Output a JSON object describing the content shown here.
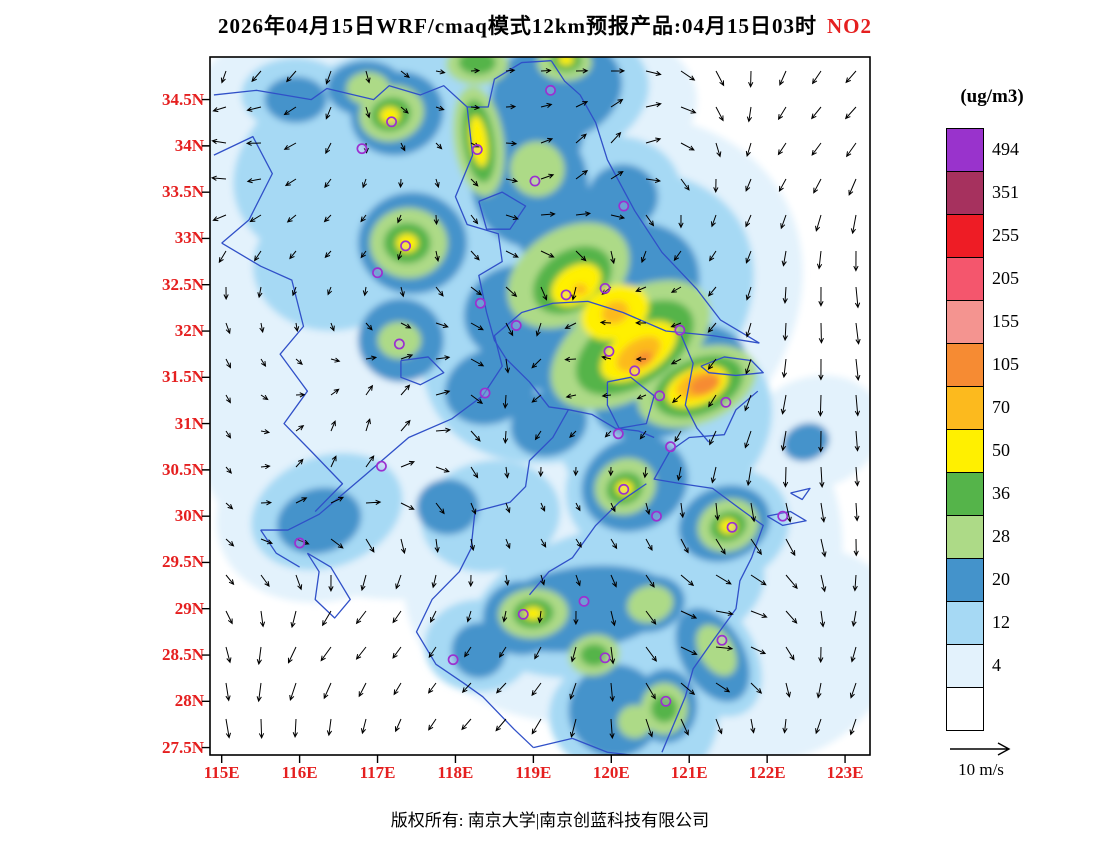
{
  "title": {
    "text": "2026年04月15日WRF/cmaq模式12km预报产品:04月15日03时",
    "pollutant": "NO2"
  },
  "colors": {
    "axis_label": "#e51f1f",
    "pollutant_label": "#e51f1f",
    "boundary_line": "#3050C8",
    "city_marker": "#9B30D0",
    "wind_arrow": "#000000"
  },
  "axes": {
    "y_labels": [
      "34.5N",
      "34N",
      "33.5N",
      "33N",
      "32.5N",
      "32N",
      "31.5N",
      "31N",
      "30.5N",
      "30N",
      "29.5N",
      "29N",
      "28.5N",
      "28N",
      "27.5N"
    ],
    "x_labels": [
      "115E",
      "116E",
      "117E",
      "118E",
      "119E",
      "120E",
      "121E",
      "122E",
      "123E"
    ]
  },
  "legend": {
    "unit_label": "(ug/m3)",
    "levels": [
      "494",
      "351",
      "255",
      "205",
      "155",
      "105",
      "70",
      "50",
      "36",
      "28",
      "20",
      "12",
      "4"
    ],
    "colors_top_to_bottom": [
      "#9933CC",
      "#A6315E",
      "#EE1C25",
      "#F4566D",
      "#F49490",
      "#F68B33",
      "#FCBA1E",
      "#FFF000",
      "#55B44A",
      "#ADDA87",
      "#4493CB",
      "#A6D9F4",
      "#E3F2FC",
      "#FFFFFF"
    ]
  },
  "wind": {
    "reference_label": "10 m/s"
  },
  "footer": {
    "text": "版权所有: 南京大学|南京创蓝科技有限公司"
  },
  "chart_data": {
    "type": "contour_map",
    "variable": "NO2",
    "units": "ug/m3",
    "model_label": "WRF/cmaq 12km",
    "valid_time_label": "04月15日03时",
    "lon_range": [
      114.85,
      123.32
    ],
    "lat_range": [
      27.42,
      34.96
    ],
    "contour_levels": [
      4,
      12,
      20,
      28,
      36,
      50,
      70,
      105,
      155,
      205,
      255,
      351,
      494
    ],
    "level_colors": {
      "4": "#E3F2FC",
      "12": "#A6D9F4",
      "20": "#4493CB",
      "28": "#ADDA87",
      "36": "#55B44A",
      "50": "#FFF000",
      "70": "#FCBA1E",
      "105": "#F68B33",
      "155": "#F49490",
      "205": "#F4566D",
      "255": "#EE1C25",
      "351": "#A6315E",
      "494": "#9933CC"
    },
    "wind_reference": {
      "speed": 10,
      "units": "m/s"
    },
    "field_regions": [
      [
        117.6,
        33.6,
        3.3,
        1.9,
        -10,
        4
      ],
      [
        119.6,
        32.2,
        3.0,
        2.0,
        -30,
        4
      ],
      [
        117.2,
        31.2,
        2.6,
        2.1,
        0,
        4
      ],
      [
        119.9,
        29.5,
        2.6,
        1.7,
        -15,
        4
      ],
      [
        116.3,
        34.35,
        1.7,
        1.0,
        0,
        4
      ],
      [
        118.8,
        34.5,
        2.3,
        1.0,
        0,
        4
      ],
      [
        121.5,
        30.0,
        1.4,
        1.6,
        -20,
        4
      ],
      [
        120.9,
        28.2,
        1.3,
        1.3,
        -30,
        4
      ],
      [
        122.35,
        28.5,
        1.5,
        1.0,
        -45,
        4
      ],
      [
        116.4,
        30.1,
        1.5,
        1.0,
        -20,
        4
      ],
      [
        115.6,
        32.2,
        1.1,
        1.8,
        0,
        4
      ],
      [
        122.6,
        30.9,
        0.9,
        0.6,
        -20,
        4
      ],
      [
        117.4,
        33.9,
        2.3,
        1.2,
        -15,
        12
      ],
      [
        118.9,
        34.5,
        1.6,
        0.8,
        -10,
        12
      ],
      [
        119.7,
        32.15,
        2.3,
        1.4,
        -33,
        12
      ],
      [
        120.7,
        31.0,
        1.4,
        1.0,
        -25,
        12
      ],
      [
        117.45,
        32.9,
        1.1,
        0.8,
        0,
        12
      ],
      [
        117.3,
        34.35,
        0.9,
        0.6,
        -15,
        12
      ],
      [
        116.4,
        32.7,
        1.0,
        0.7,
        0,
        12
      ],
      [
        120.1,
        29.1,
        1.9,
        0.8,
        -12,
        12
      ],
      [
        120.3,
        30.3,
        0.9,
        0.7,
        -25,
        12
      ],
      [
        121.5,
        29.9,
        0.8,
        0.6,
        -25,
        12
      ],
      [
        116.35,
        30.05,
        1.0,
        0.6,
        -20,
        12
      ],
      [
        120.7,
        27.95,
        0.7,
        0.8,
        0,
        12
      ],
      [
        121.2,
        28.55,
        0.6,
        0.8,
        -35,
        12
      ],
      [
        118.45,
        30.0,
        0.9,
        0.6,
        -10,
        12
      ],
      [
        118.3,
        28.6,
        0.7,
        0.5,
        0,
        12
      ],
      [
        119.2,
        33.2,
        1.0,
        0.8,
        -20,
        12
      ],
      [
        120.1,
        33.5,
        0.8,
        0.6,
        0,
        12
      ],
      [
        115.95,
        34.55,
        0.7,
        0.4,
        0,
        12
      ],
      [
        120.0,
        27.85,
        0.8,
        0.6,
        0,
        12
      ],
      [
        119.3,
        34.6,
        0.85,
        0.55,
        -15,
        20
      ],
      [
        119.05,
        34.2,
        0.6,
        0.6,
        0,
        20
      ],
      [
        118.95,
        33.6,
        0.75,
        0.7,
        -10,
        20
      ],
      [
        119.35,
        33.15,
        0.6,
        0.5,
        -25,
        20
      ],
      [
        117.25,
        34.35,
        0.6,
        0.45,
        -15,
        20
      ],
      [
        116.85,
        34.62,
        0.5,
        0.3,
        0,
        20
      ],
      [
        117.45,
        32.95,
        0.7,
        0.55,
        0,
        20
      ],
      [
        119.85,
        32.25,
        1.4,
        0.8,
        -33,
        20
      ],
      [
        120.75,
        31.45,
        1.05,
        0.55,
        -25,
        20
      ],
      [
        118.75,
        32.2,
        0.65,
        0.5,
        -25,
        20
      ],
      [
        117.3,
        31.9,
        0.55,
        0.45,
        0,
        20
      ],
      [
        118.45,
        31.4,
        0.6,
        0.4,
        -20,
        20
      ],
      [
        119.2,
        31.0,
        0.5,
        0.35,
        -20,
        20
      ],
      [
        120.3,
        30.35,
        0.7,
        0.5,
        -25,
        20
      ],
      [
        121.45,
        29.92,
        0.6,
        0.4,
        -20,
        20
      ],
      [
        119.6,
        29.0,
        1.2,
        0.45,
        -8,
        20
      ],
      [
        118.85,
        28.9,
        0.5,
        0.4,
        0,
        20
      ],
      [
        120.5,
        29.05,
        0.45,
        0.3,
        -15,
        20
      ],
      [
        120.05,
        27.9,
        0.6,
        0.5,
        0,
        20
      ],
      [
        120.7,
        27.95,
        0.4,
        0.4,
        0,
        20
      ],
      [
        121.3,
        28.5,
        0.4,
        0.55,
        -30,
        20
      ],
      [
        116.25,
        29.95,
        0.55,
        0.35,
        -15,
        20
      ],
      [
        120.15,
        33.45,
        0.45,
        0.35,
        0,
        20
      ],
      [
        115.95,
        34.5,
        0.4,
        0.25,
        0,
        20
      ],
      [
        117.9,
        30.1,
        0.4,
        0.3,
        0,
        20
      ],
      [
        118.3,
        28.55,
        0.35,
        0.3,
        0,
        20
      ],
      [
        122.5,
        30.8,
        0.3,
        0.2,
        -20,
        20
      ],
      [
        119.45,
        32.6,
        0.85,
        0.5,
        -33,
        28
      ],
      [
        120.25,
        31.85,
        1.15,
        0.55,
        -33,
        28
      ],
      [
        121.1,
        31.4,
        0.8,
        0.4,
        -22,
        28
      ],
      [
        118.3,
        34.05,
        0.32,
        0.6,
        -8,
        28
      ],
      [
        117.18,
        34.35,
        0.42,
        0.3,
        -15,
        28
      ],
      [
        118.28,
        34.88,
        0.4,
        0.22,
        0,
        28
      ],
      [
        119.4,
        34.9,
        0.35,
        0.2,
        0,
        28
      ],
      [
        117.4,
        32.95,
        0.5,
        0.38,
        0,
        28
      ],
      [
        117.28,
        31.9,
        0.28,
        0.2,
        0,
        28
      ],
      [
        120.18,
        30.32,
        0.4,
        0.3,
        -25,
        28
      ],
      [
        121.5,
        29.9,
        0.4,
        0.28,
        -20,
        28
      ],
      [
        119.0,
        28.95,
        0.45,
        0.27,
        -5,
        28
      ],
      [
        119.78,
        28.5,
        0.33,
        0.22,
        -10,
        28
      ],
      [
        120.5,
        29.05,
        0.3,
        0.2,
        -15,
        28
      ],
      [
        120.68,
        27.92,
        0.3,
        0.28,
        0,
        28
      ],
      [
        120.3,
        27.78,
        0.22,
        0.18,
        0,
        28
      ],
      [
        121.35,
        28.55,
        0.22,
        0.3,
        -30,
        28
      ],
      [
        116.88,
        34.62,
        0.28,
        0.18,
        0,
        28
      ],
      [
        119.05,
        33.75,
        0.35,
        0.3,
        -20,
        28
      ],
      [
        119.5,
        32.55,
        0.55,
        0.32,
        -33,
        36
      ],
      [
        120.3,
        31.82,
        0.85,
        0.4,
        -33,
        36
      ],
      [
        121.12,
        31.4,
        0.6,
        0.3,
        -22,
        36
      ],
      [
        118.3,
        34.05,
        0.2,
        0.45,
        -8,
        36
      ],
      [
        117.17,
        34.34,
        0.26,
        0.18,
        -15,
        36
      ],
      [
        118.28,
        34.9,
        0.24,
        0.13,
        0,
        36
      ],
      [
        119.42,
        34.92,
        0.2,
        0.12,
        0,
        36
      ],
      [
        117.38,
        32.95,
        0.3,
        0.22,
        0,
        36
      ],
      [
        120.17,
        30.3,
        0.24,
        0.17,
        -25,
        36
      ],
      [
        121.5,
        29.89,
        0.24,
        0.16,
        -20,
        36
      ],
      [
        119.0,
        28.95,
        0.26,
        0.16,
        -5,
        36
      ],
      [
        119.78,
        28.5,
        0.18,
        0.12,
        0,
        36
      ],
      [
        120.68,
        27.92,
        0.17,
        0.15,
        0,
        36
      ],
      [
        119.55,
        32.5,
        0.35,
        0.2,
        -33,
        50
      ],
      [
        120.05,
        32.2,
        0.45,
        0.28,
        -25,
        50
      ],
      [
        120.35,
        31.78,
        0.55,
        0.25,
        -33,
        50
      ],
      [
        121.1,
        31.4,
        0.42,
        0.2,
        -22,
        50
      ],
      [
        118.3,
        34.05,
        0.11,
        0.28,
        -8,
        50
      ],
      [
        117.16,
        34.33,
        0.13,
        0.09,
        0,
        50
      ],
      [
        117.38,
        32.95,
        0.14,
        0.1,
        0,
        50
      ],
      [
        121.5,
        29.89,
        0.11,
        0.08,
        0,
        50
      ],
      [
        120.17,
        30.3,
        0.11,
        0.08,
        0,
        50
      ],
      [
        119.0,
        28.95,
        0.12,
        0.07,
        0,
        50
      ],
      [
        119.42,
        34.93,
        0.1,
        0.06,
        0,
        50
      ],
      [
        120.35,
        31.75,
        0.32,
        0.15,
        -33,
        70
      ],
      [
        121.12,
        31.42,
        0.3,
        0.14,
        -20,
        70
      ],
      [
        120.05,
        32.2,
        0.18,
        0.12,
        -25,
        70
      ],
      [
        119.6,
        32.45,
        0.09,
        0.06,
        0,
        70
      ],
      [
        121.2,
        31.42,
        0.2,
        0.1,
        -18,
        105
      ],
      [
        120.42,
        31.7,
        0.12,
        0.07,
        -33,
        105
      ]
    ],
    "city_markers": [
      [
        117.18,
        34.26
      ],
      [
        116.8,
        33.97
      ],
      [
        118.28,
        33.96
      ],
      [
        119.02,
        33.62
      ],
      [
        120.16,
        33.35
      ],
      [
        119.22,
        34.6
      ],
      [
        117.36,
        32.92
      ],
      [
        117.0,
        32.63
      ],
      [
        117.28,
        31.86
      ],
      [
        118.32,
        32.3
      ],
      [
        118.78,
        32.06
      ],
      [
        119.42,
        32.39
      ],
      [
        119.92,
        32.46
      ],
      [
        120.88,
        32.01
      ],
      [
        118.38,
        31.33
      ],
      [
        119.97,
        31.78
      ],
      [
        120.3,
        31.57
      ],
      [
        120.62,
        31.3
      ],
      [
        121.47,
        31.23
      ],
      [
        120.09,
        30.89
      ],
      [
        120.76,
        30.75
      ],
      [
        120.16,
        30.29
      ],
      [
        120.58,
        30.0
      ],
      [
        121.55,
        29.88
      ],
      [
        122.2,
        30.0
      ],
      [
        117.05,
        30.54
      ],
      [
        116.0,
        29.71
      ],
      [
        119.65,
        29.08
      ],
      [
        118.87,
        28.94
      ],
      [
        119.92,
        28.47
      ],
      [
        117.97,
        28.45
      ],
      [
        121.42,
        28.66
      ],
      [
        120.7,
        28.0
      ]
    ]
  }
}
